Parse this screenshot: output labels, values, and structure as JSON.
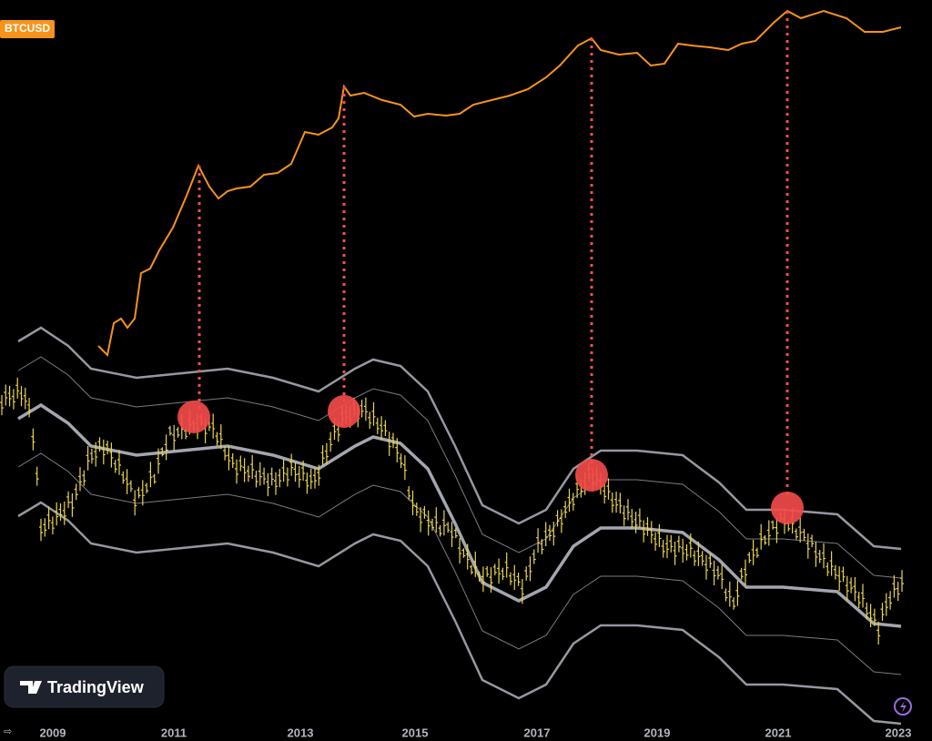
{
  "symbol": "BTCUSD",
  "logo": "TradingView",
  "x_axis": {
    "labels": [
      "2009",
      "2011",
      "2013",
      "2015",
      "2017",
      "2019",
      "2021",
      "2023"
    ]
  }
}
